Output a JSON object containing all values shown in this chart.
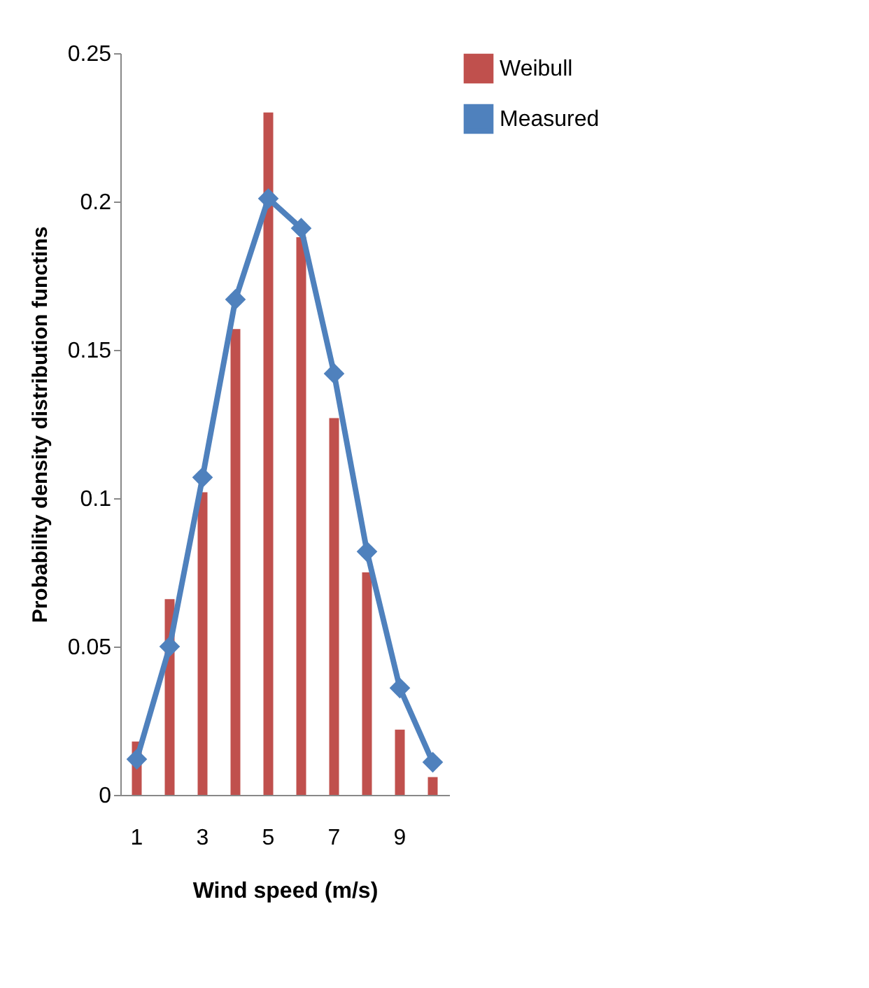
{
  "chart_data": {
    "type": "bar",
    "xlabel": "Wind speed (m/s)",
    "ylabel": "Probability density distribution functins",
    "categories": [
      "1",
      null,
      "3",
      null,
      "5",
      null,
      "7",
      null,
      "9",
      null
    ],
    "series": [
      {
        "name": "Weibull",
        "color": "#c0504d",
        "values": [
          0.018,
          0.066,
          0.102,
          0.157,
          0.23,
          0.188,
          0.127,
          0.075,
          0.022,
          0.006
        ]
      },
      {
        "name": "Measured",
        "type": "line",
        "color": "#4f81bd",
        "marker": "diamond",
        "values": [
          0.012,
          0.05,
          0.107,
          0.167,
          0.201,
          0.191,
          0.142,
          0.082,
          0.036,
          0.011
        ]
      }
    ],
    "ylim": [
      0,
      0.25
    ],
    "yticks": [
      0,
      0.05,
      0.1,
      0.15,
      0.2,
      0.25
    ],
    "grid": false,
    "legend": "right"
  }
}
